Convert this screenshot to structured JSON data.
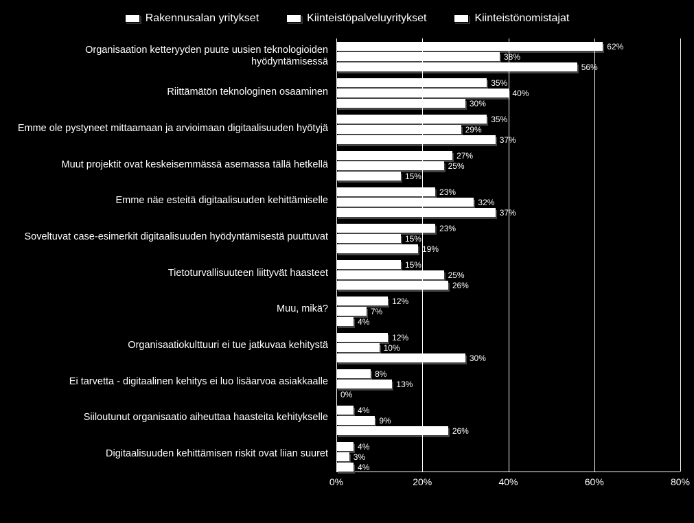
{
  "chart": {
    "type": "bar",
    "orientation": "horizontal",
    "background_color": "#000000",
    "bar_color": "#ffffff",
    "shadow_color": "#444444",
    "text_color": "#ffffff",
    "grid_color": "#ffffff",
    "legend_fontsize": 16,
    "category_fontsize": 14.5,
    "value_fontsize": 12,
    "axis_fontsize": 14,
    "x_axis": {
      "min": 0,
      "max": 80,
      "ticks": [
        0,
        20,
        40,
        60,
        80
      ],
      "tick_labels": [
        "0%",
        "20%",
        "40%",
        "60%",
        "80%"
      ]
    },
    "series_names": [
      "Rakennusalan yritykset",
      "Kiinteistöpalveluyritykset",
      "Kiinteistönomistajat"
    ],
    "categories": [
      {
        "label": "Organisaation ketteryyden puute uusien teknologioiden hyödyntämisessä",
        "values": [
          62,
          38,
          56
        ]
      },
      {
        "label": "Riittämätön teknologinen osaaminen",
        "values": [
          35,
          40,
          30
        ]
      },
      {
        "label": "Emme ole pystyneet mittaamaan ja arvioimaan digitaalisuuden hyötyjä",
        "values": [
          35,
          29,
          37
        ]
      },
      {
        "label": "Muut projektit ovat keskeisemmässä asemassa tällä hetkellä",
        "values": [
          27,
          25,
          15
        ]
      },
      {
        "label": "Emme näe esteitä digitaalisuuden kehittämiselle",
        "values": [
          23,
          32,
          37
        ]
      },
      {
        "label": "Soveltuvat case-esimerkit digitaalisuuden hyödyntämisestä puuttuvat",
        "values": [
          23,
          15,
          19
        ]
      },
      {
        "label": "Tietoturvallisuuteen liittyvät haasteet",
        "values": [
          15,
          25,
          26
        ]
      },
      {
        "label": "Muu, mikä?",
        "values": [
          12,
          7,
          4
        ]
      },
      {
        "label": "Organisaatiokulttuuri ei tue jatkuvaa kehitystä",
        "values": [
          12,
          10,
          30
        ]
      },
      {
        "label": "Ei tarvetta - digitaalinen kehitys ei luo lisäarvoa asiakkaalle",
        "values": [
          8,
          13,
          0
        ]
      },
      {
        "label": "Siiloutunut organisaatio aiheuttaa haasteita kehitykselle",
        "values": [
          4,
          9,
          26
        ]
      },
      {
        "label": "Digitaalisuuden kehittämisen riskit ovat liian suuret",
        "values": [
          4,
          3,
          4
        ]
      }
    ]
  }
}
